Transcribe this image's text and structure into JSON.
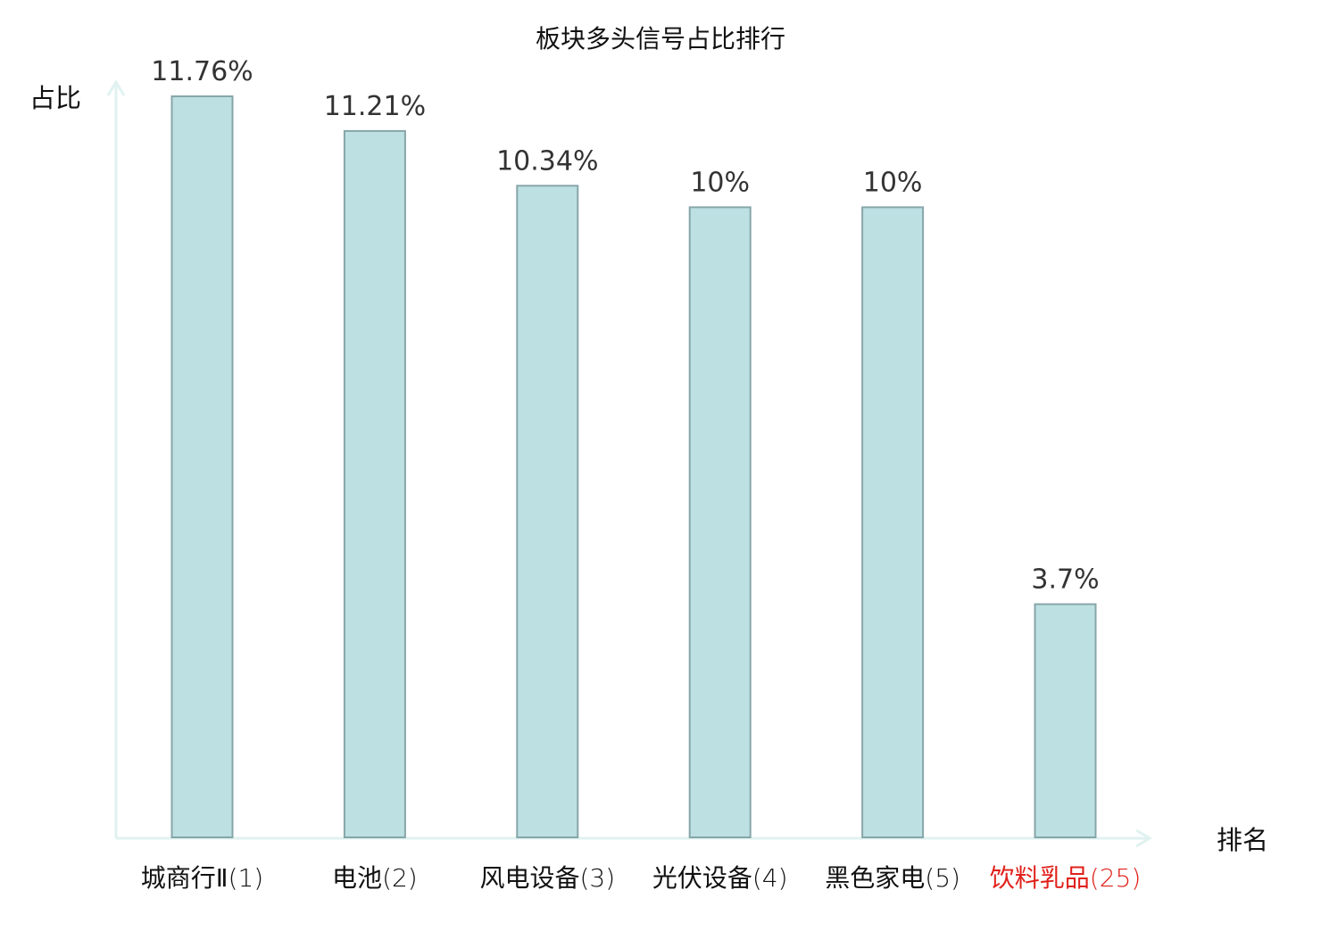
{
  "chart_data": {
    "type": "bar",
    "title": "板块多头信号占比排行",
    "ylabel": "占比",
    "xlabel": "排名",
    "categories": [
      {
        "name": "城商行Ⅱ",
        "rank": "(1)",
        "highlight": false
      },
      {
        "name": "电池",
        "rank": "(2)",
        "highlight": false
      },
      {
        "name": "风电设备",
        "rank": "(3)",
        "highlight": false
      },
      {
        "name": "光伏设备",
        "rank": "(4)",
        "highlight": false
      },
      {
        "name": "黑色家电",
        "rank": "(5)",
        "highlight": false
      },
      {
        "name": "饮料乳品",
        "rank": "(25)",
        "highlight": true
      }
    ],
    "values": [
      11.76,
      11.21,
      10.34,
      10,
      10,
      3.7
    ],
    "value_labels": [
      "11.76%",
      "11.21%",
      "10.34%",
      "10%",
      "10%",
      "3.7%"
    ],
    "ylim": [
      0,
      11.76
    ],
    "grid": false,
    "colors": {
      "bar_fill": "#bde0e3",
      "bar_stroke": "#87a6a9",
      "axis": "#e0f2f0",
      "text": "#333333",
      "category_text": "#111111",
      "highlight_text": "#e0201a"
    }
  }
}
